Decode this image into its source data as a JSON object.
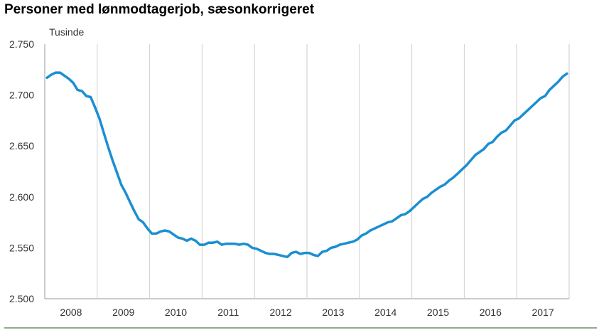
{
  "chart_data": {
    "type": "line",
    "title": "Personer med lønmodtagerjob, sæsonkorrigeret",
    "unit_label": "Tusinde",
    "xlabel": "",
    "ylabel": "",
    "ylim": [
      2500,
      2750
    ],
    "y_ticks": [
      2500,
      2550,
      2600,
      2650,
      2700,
      2750
    ],
    "y_tick_labels": [
      "2.500",
      "2.550",
      "2.600",
      "2.650",
      "2.700",
      "2.750"
    ],
    "x_tick_labels": [
      "2008",
      "2009",
      "2010",
      "2011",
      "2012",
      "2013",
      "2014",
      "2015",
      "2016",
      "2017"
    ],
    "grid": "vertical",
    "line_color": "#1a8fd1",
    "x": [
      "2008-01",
      "2008-02",
      "2008-03",
      "2008-04",
      "2008-05",
      "2008-06",
      "2008-07",
      "2008-08",
      "2008-09",
      "2008-10",
      "2008-11",
      "2008-12",
      "2009-01",
      "2009-02",
      "2009-03",
      "2009-04",
      "2009-05",
      "2009-06",
      "2009-07",
      "2009-08",
      "2009-09",
      "2009-10",
      "2009-11",
      "2009-12",
      "2010-01",
      "2010-02",
      "2010-03",
      "2010-04",
      "2010-05",
      "2010-06",
      "2010-07",
      "2010-08",
      "2010-09",
      "2010-10",
      "2010-11",
      "2010-12",
      "2011-01",
      "2011-02",
      "2011-03",
      "2011-04",
      "2011-05",
      "2011-06",
      "2011-07",
      "2011-08",
      "2011-09",
      "2011-10",
      "2011-11",
      "2011-12",
      "2012-01",
      "2012-02",
      "2012-03",
      "2012-04",
      "2012-05",
      "2012-06",
      "2012-07",
      "2012-08",
      "2012-09",
      "2012-10",
      "2012-11",
      "2012-12",
      "2013-01",
      "2013-02",
      "2013-03",
      "2013-04",
      "2013-05",
      "2013-06",
      "2013-07",
      "2013-08",
      "2013-09",
      "2013-10",
      "2013-11",
      "2013-12",
      "2014-01",
      "2014-02",
      "2014-03",
      "2014-04",
      "2014-05",
      "2014-06",
      "2014-07",
      "2014-08",
      "2014-09",
      "2014-10",
      "2014-11",
      "2014-12",
      "2015-01",
      "2015-02",
      "2015-03",
      "2015-04",
      "2015-05",
      "2015-06",
      "2015-07",
      "2015-08",
      "2015-09",
      "2015-10",
      "2015-11",
      "2015-12",
      "2016-01",
      "2016-02",
      "2016-03",
      "2016-04",
      "2016-05",
      "2016-06",
      "2016-07",
      "2016-08",
      "2016-09",
      "2016-10",
      "2016-11",
      "2016-12",
      "2017-01",
      "2017-02",
      "2017-03",
      "2017-04",
      "2017-05",
      "2017-06",
      "2017-07",
      "2017-08",
      "2017-09",
      "2017-10",
      "2017-11",
      "2017-12"
    ],
    "series": [
      {
        "values": [
          2717,
          2720,
          2722,
          2722,
          2719,
          2716,
          2712,
          2705,
          2704,
          2699,
          2698,
          2688,
          2677,
          2663,
          2649,
          2636,
          2624,
          2612,
          2604,
          2595,
          2586,
          2578,
          2575,
          2569,
          2564,
          2564,
          2566,
          2567,
          2566,
          2563,
          2560,
          2559,
          2557,
          2559,
          2557,
          2553,
          2553,
          2555,
          2555,
          2556,
          2553,
          2554,
          2554,
          2554,
          2553,
          2554,
          2553,
          2550,
          2549,
          2547,
          2545,
          2544,
          2544,
          2543,
          2542,
          2541,
          2545,
          2546,
          2544,
          2545,
          2545,
          2543,
          2542,
          2546,
          2547,
          2550,
          2551,
          2553,
          2554,
          2555,
          2556,
          2558,
          2562,
          2564,
          2567,
          2569,
          2571,
          2573,
          2575,
          2576,
          2579,
          2582,
          2583,
          2586,
          2590,
          2594,
          2598,
          2600,
          2604,
          2607,
          2610,
          2612,
          2616,
          2619,
          2623,
          2627,
          2631,
          2636,
          2641,
          2644,
          2647,
          2652,
          2654,
          2659,
          2663,
          2665,
          2670,
          2675,
          2677,
          2681,
          2685,
          2689,
          2693,
          2697,
          2699,
          2705,
          2709,
          2713,
          2718,
          2721
        ]
      }
    ]
  }
}
